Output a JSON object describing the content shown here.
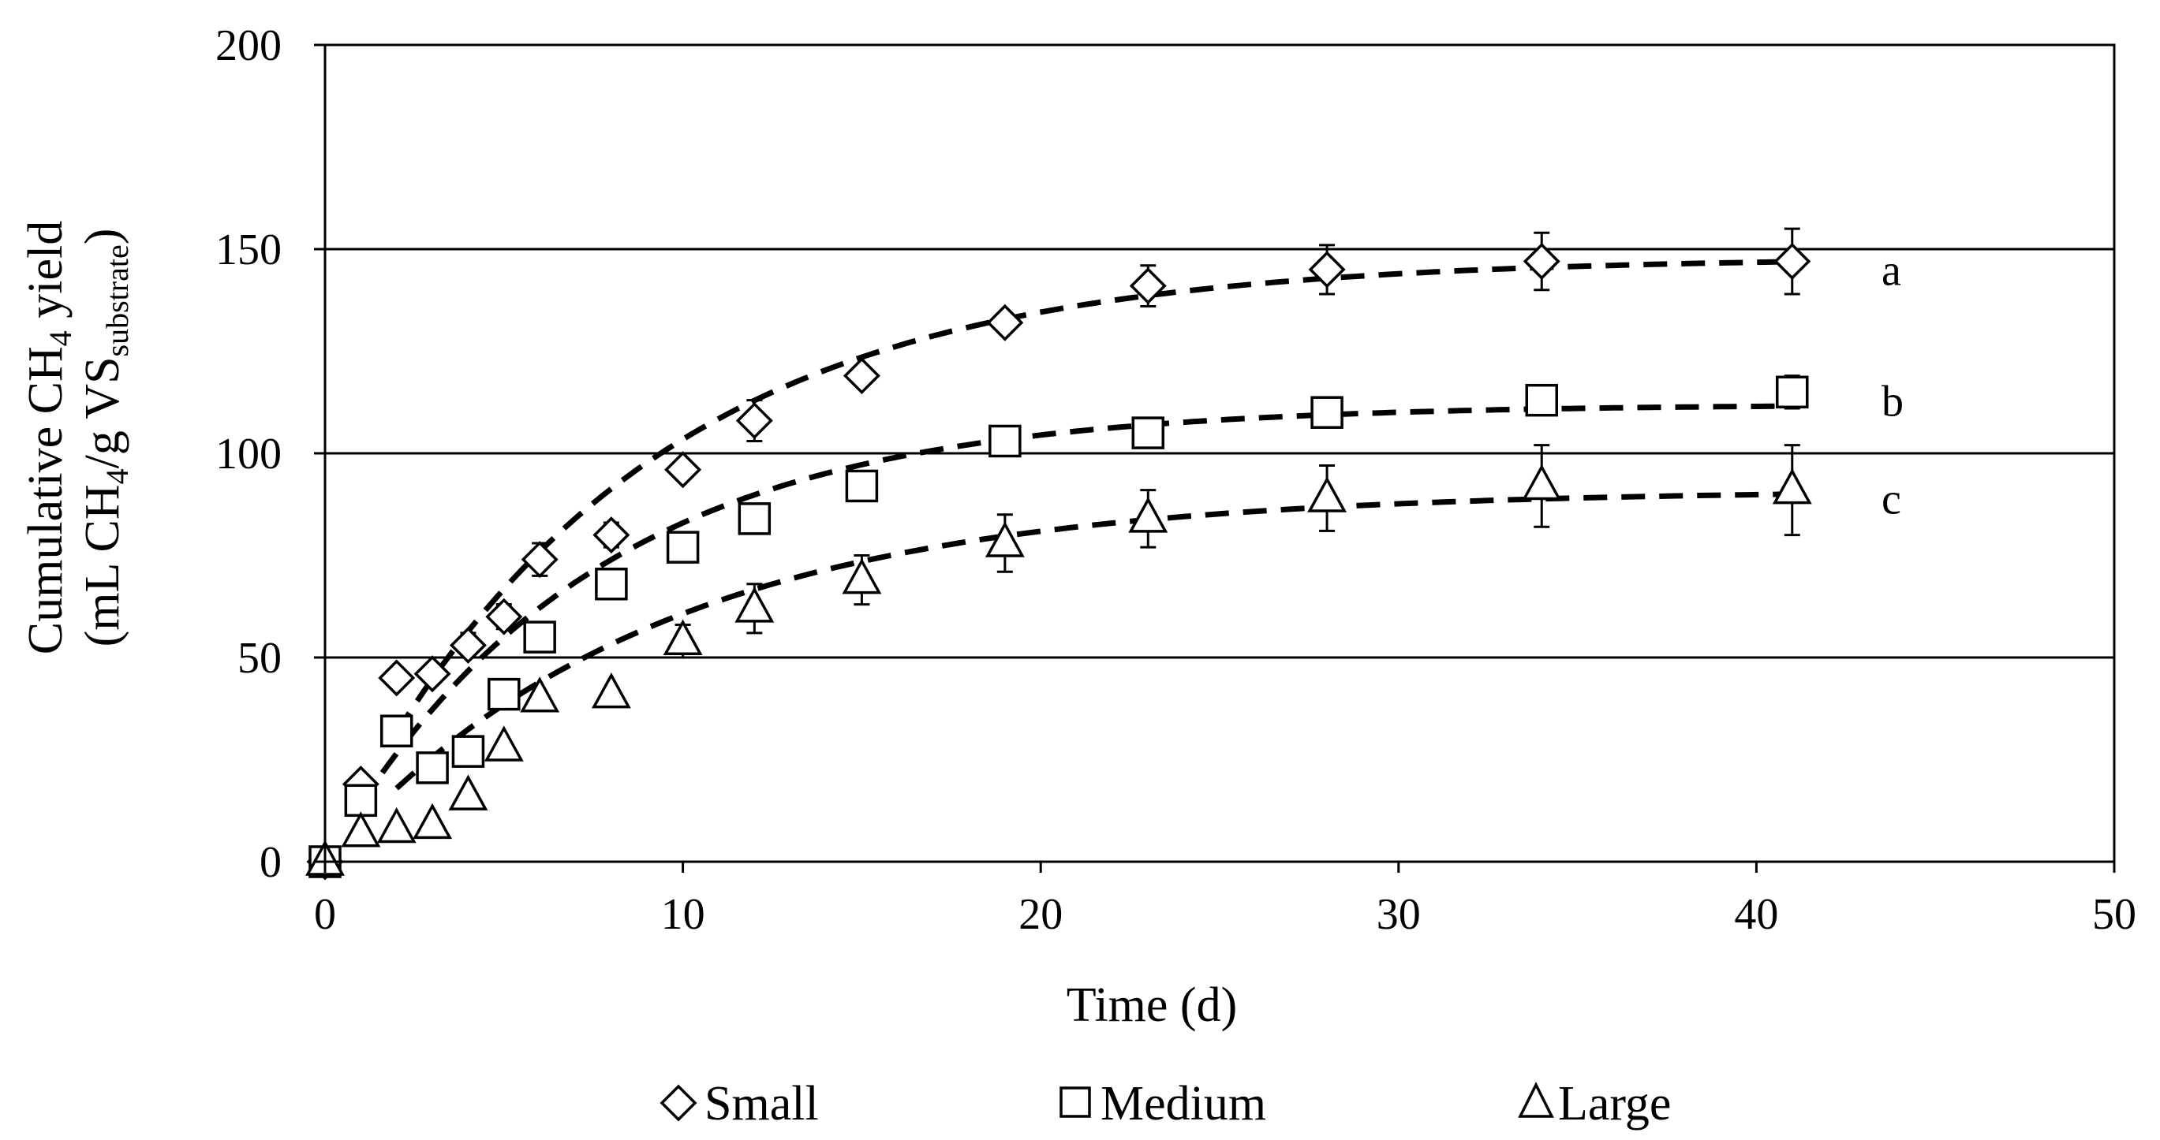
{
  "chart_data": {
    "type": "scatter",
    "title": "",
    "xlabel": "Time (d)",
    "ylabel_line1_prefix": "Cumulative CH",
    "ylabel_line1_sub": "4",
    "ylabel_line1_suffix": " yield",
    "ylabel_line2_a": "(mL CH",
    "ylabel_line2_sub1": "4",
    "ylabel_line2_b": "/g VS",
    "ylabel_line2_sub2": "substrate",
    "ylabel_line2_c": ")",
    "xlim": [
      0,
      50
    ],
    "ylim": [
      0,
      200
    ],
    "x_ticks": [
      0,
      10,
      20,
      30,
      40,
      50
    ],
    "y_ticks": [
      0,
      50,
      100,
      150,
      200
    ],
    "x_tick_labels": [
      "0",
      "10",
      "20",
      "30",
      "40",
      "50"
    ],
    "y_tick_labels": [
      "0",
      "50",
      "100",
      "150",
      "200"
    ],
    "gridlines_y": [
      50,
      100,
      150
    ],
    "legend_position": "bottom",
    "series": [
      {
        "name": "Small",
        "marker": "diamond",
        "annotation": "a",
        "x": [
          0,
          1,
          2,
          3,
          4,
          5,
          6,
          8,
          10,
          12,
          15,
          19,
          23,
          28,
          34,
          41
        ],
        "y": [
          0,
          19,
          45,
          46,
          53,
          60,
          74,
          80,
          96,
          108,
          119,
          132,
          141,
          145,
          147,
          147
        ],
        "err": [
          0,
          0,
          0,
          0,
          3,
          3,
          4,
          3,
          0,
          5,
          0,
          0,
          5,
          6,
          7,
          8
        ],
        "fit": {
          "ymax": 148,
          "k": 0.12,
          "x0": 2
        }
      },
      {
        "name": "Medium",
        "marker": "square",
        "annotation": "b",
        "x": [
          0,
          1,
          2,
          3,
          4,
          5,
          6,
          8,
          10,
          12,
          15,
          19,
          23,
          28,
          34,
          41
        ],
        "y": [
          0,
          15,
          32,
          23,
          27,
          41,
          55,
          68,
          77,
          84,
          92,
          103,
          105,
          110,
          113,
          115
        ],
        "err": [
          0,
          0,
          0,
          0,
          0,
          0,
          0,
          0,
          0,
          0,
          0,
          0,
          0,
          0,
          0,
          4
        ],
        "fit": {
          "ymax": 112,
          "k": 0.135,
          "x0": 1
        }
      },
      {
        "name": "Large",
        "marker": "triangle",
        "annotation": "c",
        "x": [
          0,
          1,
          2,
          3,
          4,
          5,
          6,
          8,
          10,
          12,
          15,
          19,
          23,
          28,
          34,
          41
        ],
        "y": [
          0,
          7,
          8,
          9,
          16,
          28,
          40,
          41,
          54,
          62,
          69,
          78,
          84,
          89,
          92,
          91
        ],
        "err": [
          0,
          0,
          0,
          0,
          0,
          0,
          0,
          0,
          4,
          6,
          6,
          7,
          7,
          8,
          10,
          11
        ],
        "fit": {
          "ymax": 91,
          "k": 0.11,
          "x0": 2
        }
      }
    ]
  }
}
